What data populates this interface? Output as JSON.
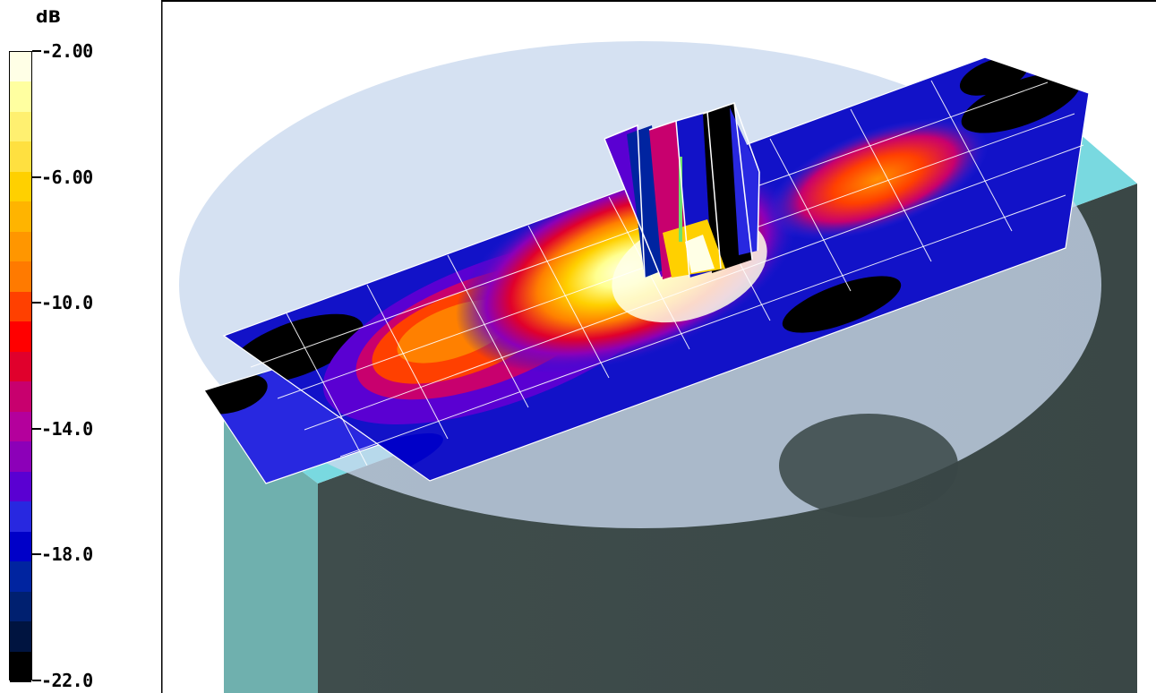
{
  "chart_data": {
    "type": "heatmap",
    "title": "",
    "colorbar": {
      "unit": "dB",
      "range": [
        -22.0,
        -2.0
      ],
      "tick_labels": [
        "-2.00",
        "-6.00",
        "-10.0",
        "-14.0",
        "-18.0",
        "-22.0"
      ],
      "levels": [
        {
          "color": "#ffffe6"
        },
        {
          "color": "#ffffa0"
        },
        {
          "color": "#fff070"
        },
        {
          "color": "#ffe040"
        },
        {
          "color": "#ffd000"
        },
        {
          "color": "#ffb400"
        },
        {
          "color": "#ff9600"
        },
        {
          "color": "#ff7a00"
        },
        {
          "color": "#ff4000"
        },
        {
          "color": "#ff0000"
        },
        {
          "color": "#e0002c"
        },
        {
          "color": "#c8006e"
        },
        {
          "color": "#b4009c"
        },
        {
          "color": "#8c00b8"
        },
        {
          "color": "#5a00d2"
        },
        {
          "color": "#2828e0"
        },
        {
          "color": "#0000c8"
        },
        {
          "color": "#0024a0"
        },
        {
          "color": "#002070"
        },
        {
          "color": "#001440"
        },
        {
          "color": "#000000"
        }
      ]
    }
  }
}
